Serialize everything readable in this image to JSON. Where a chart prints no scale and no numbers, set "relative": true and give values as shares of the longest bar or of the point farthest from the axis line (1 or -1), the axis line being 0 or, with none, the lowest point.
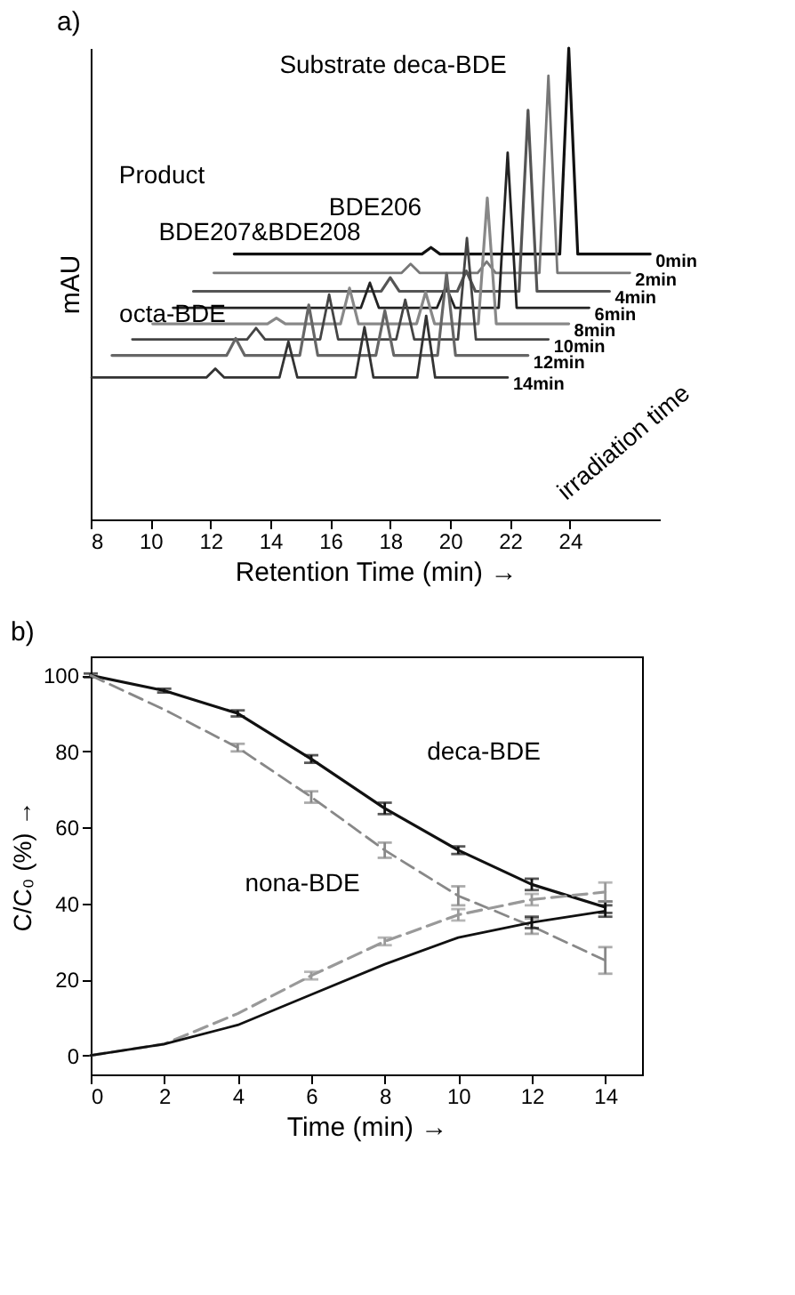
{
  "chart_data": [
    {
      "type": "line",
      "title": "a)",
      "xlabel": "Retention Time (min) →",
      "ylabel": "mAU",
      "relative": true,
      "xlim": [
        8,
        27
      ],
      "xticks": [
        8,
        10,
        12,
        14,
        16,
        18,
        20,
        22,
        24
      ],
      "grid": false,
      "line_style": "solid",
      "series": [
        {
          "name": "0min",
          "color": "#111111",
          "x": [
            12.79,
            19.06,
            19.36,
            19.66,
            23.66,
            23.96,
            24.26,
            26.68
          ],
          "values": [
            0.563,
            0.563,
            0.577,
            0.563,
            0.563,
            1.0,
            0.563,
            0.563
          ]
        },
        {
          "name": "2min",
          "color": "#777777",
          "x": [
            12.11,
            18.38,
            18.68,
            18.98,
            20.92,
            21.22,
            21.52,
            22.98,
            23.28,
            23.58,
            26.0
          ],
          "values": [
            0.523,
            0.523,
            0.542,
            0.523,
            0.523,
            0.547,
            0.523,
            0.523,
            0.941,
            0.523,
            0.523
          ]
        },
        {
          "name": "4min",
          "color": "#555555",
          "x": [
            11.43,
            17.7,
            18.0,
            18.3,
            20.24,
            20.54,
            20.84,
            22.3,
            22.6,
            22.9,
            25.32
          ],
          "values": [
            0.484,
            0.484,
            0.513,
            0.484,
            0.484,
            0.527,
            0.484,
            0.484,
            0.868,
            0.484,
            0.484
          ]
        },
        {
          "name": "6min",
          "color": "#222222",
          "x": [
            10.75,
            17.02,
            17.32,
            17.62,
            19.56,
            19.86,
            20.16,
            21.62,
            21.92,
            22.22,
            24.64
          ],
          "values": [
            0.449,
            0.449,
            0.502,
            0.449,
            0.449,
            0.494,
            0.449,
            0.449,
            0.778,
            0.449,
            0.449
          ]
        },
        {
          "name": "8min",
          "color": "#888888",
          "x": [
            10.07,
            13.9,
            14.2,
            14.5,
            16.34,
            16.64,
            16.94,
            18.88,
            19.18,
            19.48,
            20.94,
            21.24,
            21.54,
            23.96
          ],
          "values": [
            0.415,
            0.415,
            0.427,
            0.415,
            0.415,
            0.491,
            0.415,
            0.415,
            0.482,
            0.415,
            0.415,
            0.682,
            0.415,
            0.415
          ]
        },
        {
          "name": "10min",
          "color": "#444444",
          "x": [
            9.39,
            13.22,
            13.52,
            13.82,
            15.66,
            15.96,
            16.26,
            18.2,
            18.5,
            18.8,
            20.26,
            20.56,
            20.86,
            23.28
          ],
          "values": [
            0.382,
            0.382,
            0.406,
            0.382,
            0.382,
            0.477,
            0.382,
            0.382,
            0.466,
            0.382,
            0.382,
            0.597,
            0.382,
            0.382
          ]
        },
        {
          "name": "12min",
          "color": "#666666",
          "x": [
            8.71,
            12.54,
            12.84,
            13.14,
            14.98,
            15.28,
            15.58,
            17.52,
            17.82,
            18.12,
            19.58,
            19.88,
            20.18,
            22.6
          ],
          "values": [
            0.348,
            0.348,
            0.384,
            0.348,
            0.348,
            0.455,
            0.348,
            0.348,
            0.443,
            0.348,
            0.348,
            0.522,
            0.348,
            0.348
          ]
        },
        {
          "name": "14min",
          "color": "#333333",
          "x": [
            8.03,
            11.86,
            12.16,
            12.46,
            14.3,
            14.6,
            14.9,
            16.84,
            17.14,
            17.44,
            18.9,
            19.2,
            19.5,
            21.92
          ],
          "values": [
            0.301,
            0.301,
            0.32,
            0.301,
            0.301,
            0.377,
            0.301,
            0.301,
            0.408,
            0.301,
            0.301,
            0.432,
            0.301,
            0.301
          ]
        }
      ],
      "annotations": [
        "Substrate deca-BDE",
        "Product",
        "BDE206",
        "BDE207&BDE208",
        "octa-BDE",
        "irradiation time"
      ]
    },
    {
      "type": "line",
      "title": "b)",
      "xlabel": "Time (min) →",
      "ylabel": "C/C₀ (%) →",
      "xlim": [
        0,
        15
      ],
      "xticks": [
        0,
        2,
        4,
        6,
        8,
        10,
        12,
        14
      ],
      "ylim": [
        -5,
        105
      ],
      "yticks": [
        0,
        20,
        40,
        60,
        80,
        100
      ],
      "grid": false,
      "x": [
        0,
        2,
        4,
        6,
        8,
        10,
        12,
        14
      ],
      "series": [
        {
          "color": "#111111",
          "line_style": "solid",
          "values": [
            100,
            96,
            90,
            78,
            65,
            54,
            45,
            39
          ],
          "errors": [
            0.5,
            0.5,
            0.8,
            1,
            1.5,
            1,
            1.5,
            1.5
          ]
        },
        {
          "color": "#888888",
          "line_style": "dashed",
          "values": [
            100,
            91,
            81,
            68,
            54,
            42,
            34,
            25
          ],
          "errors": [
            null,
            null,
            1,
            1.5,
            2,
            2.5,
            2,
            3.5
          ]
        },
        {
          "color": "#999999",
          "line_style": "dashed",
          "values": [
            0,
            3,
            11,
            21,
            30,
            37,
            41,
            43
          ],
          "errors": [
            null,
            null,
            null,
            1,
            1,
            1.5,
            1.5,
            2.5
          ]
        },
        {
          "color": "#111111",
          "line_style": "solid",
          "values": [
            0,
            3,
            8,
            16,
            24,
            31,
            35,
            38
          ],
          "errors": [
            null,
            null,
            null,
            null,
            null,
            null,
            1.5,
            1.5
          ]
        }
      ],
      "annotations": [
        "deca-BDE",
        "nona-BDE"
      ]
    }
  ]
}
